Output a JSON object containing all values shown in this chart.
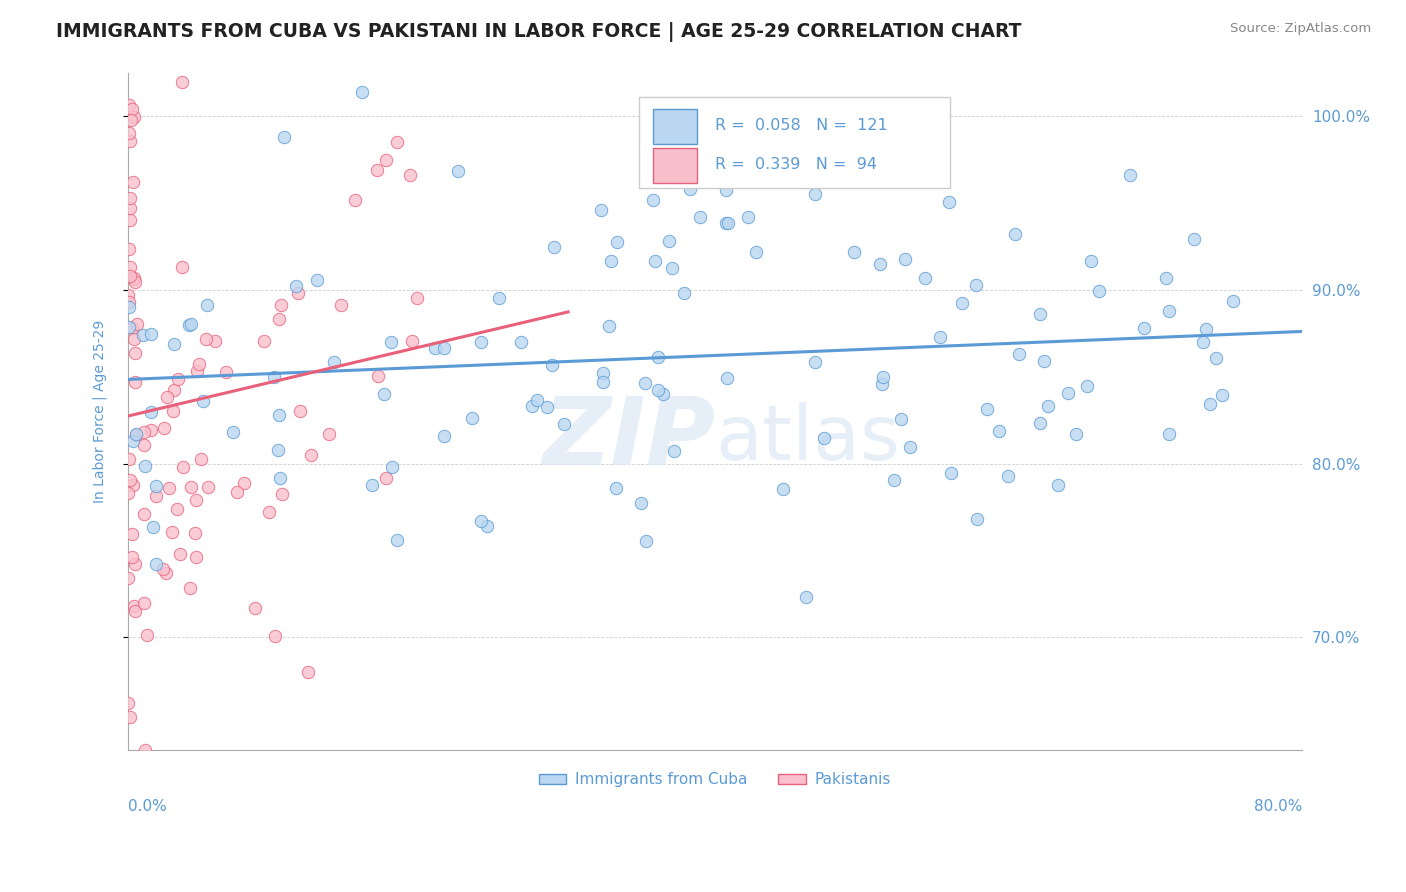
{
  "title": "IMMIGRANTS FROM CUBA VS PAKISTANI IN LABOR FORCE | AGE 25-29 CORRELATION CHART",
  "source_text": "Source: ZipAtlas.com",
  "ylabel": "In Labor Force | Age 25-29",
  "xmin": 0.0,
  "xmax": 0.8,
  "ymin": 0.635,
  "ymax": 1.025,
  "yticks": [
    0.7,
    0.8,
    0.9,
    1.0
  ],
  "ytick_labels": [
    "70.0%",
    "80.0%",
    "90.0%",
    "100.0%"
  ],
  "color_cuba": "#bad6f0",
  "color_cuba_edge": "#5b9bd5",
  "color_pak": "#f9c0cb",
  "color_pak_edge": "#e8607a",
  "color_cuba_line": "#5b9bd5",
  "color_pak_line": "#e8607a",
  "legend_box_cuba": "#bad6f0",
  "legend_box_pak": "#f9c0cb",
  "watermark_color": "#dce8f5",
  "grid_color": "#d0d0d0",
  "axis_color": "#aaaaaa",
  "title_color": "#222222",
  "label_color": "#5b9bd5",
  "source_color": "#888888"
}
